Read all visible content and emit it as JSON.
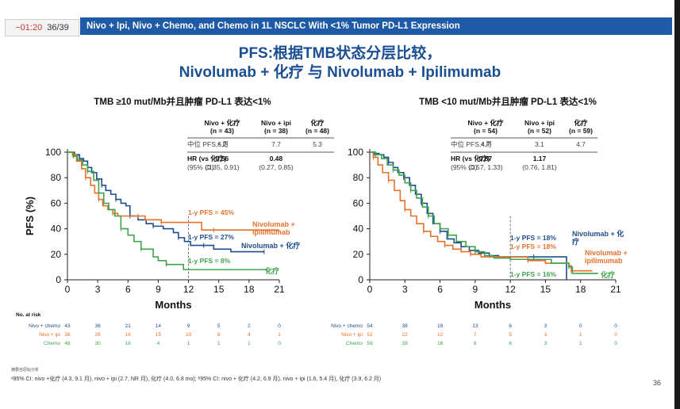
{
  "header": {
    "timer": "−01:20",
    "slide_counter": "36/39",
    "banner": "Nivo + Ipi, Nivo + Chemo, and Chemo in 1L NSCLC With <1% Tumor PD-L1 Expression"
  },
  "title": {
    "line1": "PFS:根据TMB状态分层比较，",
    "line2": "Nivolumab + 化疗 与 Nivolumab + Ipilimumab"
  },
  "colors": {
    "nivo_chemo": "#1f4e8c",
    "nivo_ipi": "#e8702a",
    "chemo": "#3fa34d",
    "title": "#1b4f91",
    "banner": "#1f5aa6"
  },
  "chart_data": [
    {
      "type": "line",
      "title": "TMB ≥10 mut/Mb并且肿瘤 PD-L1 表达<1%",
      "xlabel": "Months",
      "ylabel": "PFS (%)",
      "xlim": [
        0,
        21
      ],
      "ylim": [
        0,
        100
      ],
      "xticks": [
        0,
        3,
        6,
        9,
        12,
        15,
        18,
        21
      ],
      "yticks": [
        0,
        20,
        40,
        60,
        80,
        100
      ],
      "table": {
        "columns": [
          "Nivo + 化疗\n(n = 43)",
          "Nivo + ipi\n(n = 38)",
          "化疗\n(n = 48)"
        ],
        "rows": [
          {
            "label": "中位 PFS,ᵃ 月",
            "values": [
              "6.2",
              "7.7",
              "5.3"
            ],
            "bold": false
          },
          {
            "label": "HR (vs 化疗)",
            "values": [
              "0.56",
              "0.48",
              ""
            ],
            "bold": true
          },
          {
            "label": "(95% CI)",
            "values": [
              "(0.35, 0.91)",
              "(0.27, 0.85)",
              ""
            ],
            "bold": false
          }
        ]
      },
      "series": [
        {
          "name": "Nivolumab + 化疗",
          "key": "nivo_chemo",
          "points": [
            [
              0,
              100
            ],
            [
              0.7,
              98
            ],
            [
              1.2,
              95
            ],
            [
              1.6,
              93
            ],
            [
              2.0,
              88
            ],
            [
              2.4,
              84
            ],
            [
              2.9,
              79
            ],
            [
              3.4,
              74
            ],
            [
              3.8,
              70
            ],
            [
              4.3,
              67
            ],
            [
              4.8,
              63
            ],
            [
              5.3,
              60
            ],
            [
              5.8,
              58
            ],
            [
              6.2,
              50
            ],
            [
              7.0,
              47
            ],
            [
              7.8,
              44
            ],
            [
              8.5,
              42
            ],
            [
              9.5,
              40
            ],
            [
              10.5,
              37
            ],
            [
              11.0,
              33
            ],
            [
              11.6,
              30
            ],
            [
              12.2,
              27
            ],
            [
              13.5,
              27
            ],
            [
              14.5,
              24
            ],
            [
              16.2,
              22
            ],
            [
              19.5,
              22
            ]
          ],
          "label_1y": "1-y PFS = 27%"
        },
        {
          "name": "Nivolumab +\nipilimumab",
          "key": "nivo_ipi",
          "points": [
            [
              0,
              100
            ],
            [
              0.5,
              98
            ],
            [
              0.9,
              93
            ],
            [
              1.4,
              87
            ],
            [
              1.8,
              80
            ],
            [
              2.3,
              74
            ],
            [
              2.7,
              68
            ],
            [
              3.1,
              63
            ],
            [
              3.5,
              58
            ],
            [
              4.0,
              55
            ],
            [
              4.5,
              52
            ],
            [
              5.0,
              50
            ],
            [
              6.0,
              50
            ],
            [
              7.0,
              50
            ],
            [
              7.7,
              47
            ],
            [
              8.5,
              47
            ],
            [
              9.3,
              45
            ],
            [
              12.0,
              45
            ],
            [
              13.3,
              39
            ],
            [
              14.5,
              39
            ],
            [
              21.0,
              39
            ]
          ],
          "label_1y": "1-y PFS = 45%"
        },
        {
          "name": "化疗",
          "key": "chemo",
          "points": [
            [
              0,
              100
            ],
            [
              0.6,
              97
            ],
            [
              1.0,
              94
            ],
            [
              1.5,
              90
            ],
            [
              2.0,
              85
            ],
            [
              2.6,
              78
            ],
            [
              3.1,
              68
            ],
            [
              3.6,
              60
            ],
            [
              4.1,
              55
            ],
            [
              4.7,
              50
            ],
            [
              5.3,
              40
            ],
            [
              6.0,
              35
            ],
            [
              6.6,
              30
            ],
            [
              7.3,
              24
            ],
            [
              8.5,
              18
            ],
            [
              9.0,
              15
            ],
            [
              9.8,
              12
            ],
            [
              11.5,
              8
            ],
            [
              13.0,
              8
            ],
            [
              19.8,
              8
            ]
          ],
          "label_1y": "1-y PFS = 8%"
        }
      ],
      "at_risk": {
        "title": "No. at risk",
        "rows": [
          {
            "label": "Nivo + chemo",
            "key": "nivo_chemo",
            "values": [
              "43",
              "36",
              "21",
              "14",
              "9",
              "5",
              "2",
              "0"
            ]
          },
          {
            "label": "Nivo + ipi",
            "key": "nivo_ipi",
            "values": [
              "38",
              "26",
              "16",
              "15",
              "10",
              "8",
              "4",
              "1"
            ]
          },
          {
            "label": "Chemo",
            "key": "chemo",
            "values": [
              "48",
              "30",
              "16",
              "4",
              "1",
              "1",
              "1",
              "0"
            ]
          }
        ]
      }
    },
    {
      "type": "line",
      "title": "TMB <10 mut/Mb并且肿瘤 PD-L1 表达<1%",
      "xlabel": "Months",
      "ylabel": "",
      "xlim": [
        0,
        21
      ],
      "ylim": [
        0,
        100
      ],
      "xticks": [
        0,
        3,
        6,
        9,
        12,
        15,
        18,
        21
      ],
      "yticks": [
        0,
        20,
        40,
        60,
        80,
        100
      ],
      "table": {
        "columns": [
          "Nivo + 化疗\n(n = 54)",
          "Nivo + ipi\n(n = 52)",
          "化疗\n(n = 59)"
        ],
        "rows": [
          {
            "label": "中位 PFS,ᵃ 月",
            "values": [
              "4.7",
              "3.1",
              "4.7"
            ],
            "bold": false
          },
          {
            "label": "HR (vs 化疗)",
            "values": [
              "0.87",
              "1.17",
              ""
            ],
            "bold": true
          },
          {
            "label": "(95% CI)",
            "values": [
              "(0.57, 1.33)",
              "(0.76, 1.81)",
              ""
            ],
            "bold": false
          }
        ]
      },
      "series": [
        {
          "name": "Nivolumab + 化\n疗",
          "key": "nivo_chemo",
          "points": [
            [
              0,
              100
            ],
            [
              0.4,
              99
            ],
            [
              0.8,
              98
            ],
            [
              1.2,
              96
            ],
            [
              1.6,
              92
            ],
            [
              2.0,
              88
            ],
            [
              2.4,
              84
            ],
            [
              2.9,
              80
            ],
            [
              3.4,
              74
            ],
            [
              3.9,
              67
            ],
            [
              4.4,
              60
            ],
            [
              4.9,
              52
            ],
            [
              5.4,
              44
            ],
            [
              6.0,
              38
            ],
            [
              6.6,
              32
            ],
            [
              7.2,
              29
            ],
            [
              7.8,
              26
            ],
            [
              8.5,
              23
            ],
            [
              9.3,
              21
            ],
            [
              10.2,
              19
            ],
            [
              11.0,
              18
            ],
            [
              12.5,
              18
            ],
            [
              14.0,
              18
            ],
            [
              16.5,
              18
            ],
            [
              16.8,
              0
            ]
          ],
          "label_1y": "1-y PFS = 18%"
        },
        {
          "name": "Nivolumab +\nipilimumab",
          "key": "nivo_ipi",
          "points": [
            [
              0,
              100
            ],
            [
              0.3,
              96
            ],
            [
              0.7,
              90
            ],
            [
              1.1,
              84
            ],
            [
              1.6,
              78
            ],
            [
              2.1,
              70
            ],
            [
              2.6,
              62
            ],
            [
              3.0,
              55
            ],
            [
              3.5,
              50
            ],
            [
              4.0,
              44
            ],
            [
              4.6,
              38
            ],
            [
              5.2,
              34
            ],
            [
              5.8,
              30
            ],
            [
              6.4,
              27
            ],
            [
              7.1,
              24
            ],
            [
              7.8,
              22
            ],
            [
              8.6,
              20
            ],
            [
              9.5,
              18
            ],
            [
              12.0,
              18
            ],
            [
              13.5,
              15
            ],
            [
              15.0,
              13
            ],
            [
              17.0,
              11
            ],
            [
              17.2,
              7
            ],
            [
              19.0,
              7
            ]
          ],
          "label_1y": "1-y PFS = 18%"
        },
        {
          "name": "化疗",
          "key": "chemo",
          "points": [
            [
              0,
              100
            ],
            [
              0.5,
              98
            ],
            [
              1.0,
              95
            ],
            [
              1.5,
              90
            ],
            [
              2.0,
              86
            ],
            [
              2.5,
              82
            ],
            [
              3.0,
              76
            ],
            [
              3.5,
              70
            ],
            [
              4.0,
              64
            ],
            [
              4.5,
              57
            ],
            [
              5.0,
              50
            ],
            [
              5.5,
              44
            ],
            [
              6.0,
              40
            ],
            [
              6.7,
              35
            ],
            [
              7.4,
              30
            ],
            [
              8.2,
              26
            ],
            [
              9.0,
              22
            ],
            [
              9.8,
              19
            ],
            [
              10.6,
              17
            ],
            [
              12.0,
              16
            ],
            [
              14.0,
              16
            ],
            [
              15.5,
              13
            ],
            [
              17.0,
              10
            ],
            [
              17.3,
              5
            ],
            [
              19.5,
              5
            ]
          ],
          "label_1y": "1-y PFS = 16%"
        }
      ],
      "at_risk": {
        "title": "",
        "rows": [
          {
            "label": "Nivo + chemo",
            "key": "nivo_chemo",
            "values": [
              "54",
              "38",
              "19",
              "13",
              "6",
              "3",
              "0",
              "0"
            ]
          },
          {
            "label": "Nivo + ipi",
            "key": "nivo_ipi",
            "values": [
              "52",
              "22",
              "12",
              "7",
              "5",
              "3",
              "1",
              "0"
            ]
          },
          {
            "label": "Chemo",
            "key": "chemo",
            "values": [
              "59",
              "39",
              "16",
              "6",
              "6",
              "3",
              "1",
              "0"
            ]
          }
        ]
      }
    }
  ],
  "footnote": {
    "small": "摘要自原始分析",
    "text": "ᵃ95% CI: nivo +化疗 (4.3, 9.1 月), nivo + ipi (2.7, NR 月), 化疗 (4.0, 6.8 mo); ᵇ95% CI: nivo + 化疗 (4.2, 6.9 月), nivo + ipi (1.6, 5.4 月), 化疗 (3.9, 6.2 月)"
  },
  "page_number": "36"
}
